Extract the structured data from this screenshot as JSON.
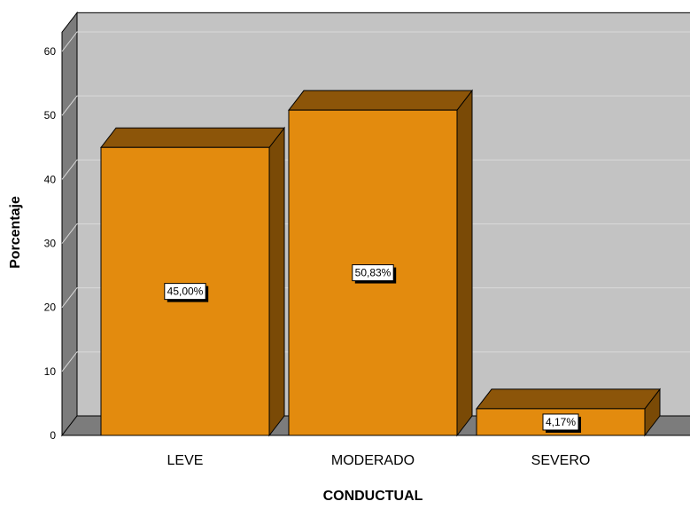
{
  "chart_data": {
    "type": "bar",
    "style": "3d",
    "title": "",
    "xlabel": "CONDUCTUAL",
    "ylabel": "Porcentaje",
    "categories": [
      "LEVE",
      "MODERADO",
      "SEVERO"
    ],
    "values": [
      45.0,
      50.83,
      4.17
    ],
    "data_labels": [
      "45,00%",
      "50,83%",
      "4,17%"
    ],
    "yticks": [
      0,
      10,
      20,
      30,
      40,
      50,
      60
    ],
    "ylim": [
      0,
      63
    ],
    "grid": true,
    "legend": "none",
    "colors": {
      "bar_front": "#E38B0E",
      "bar_top": "#8C5509",
      "bar_side": "#7A4A06",
      "plot_background": "#C3C3C3",
      "floor": "#7C7C7C",
      "left_wall": "#7C7C7C",
      "gridline": "#D9D9D9"
    }
  }
}
